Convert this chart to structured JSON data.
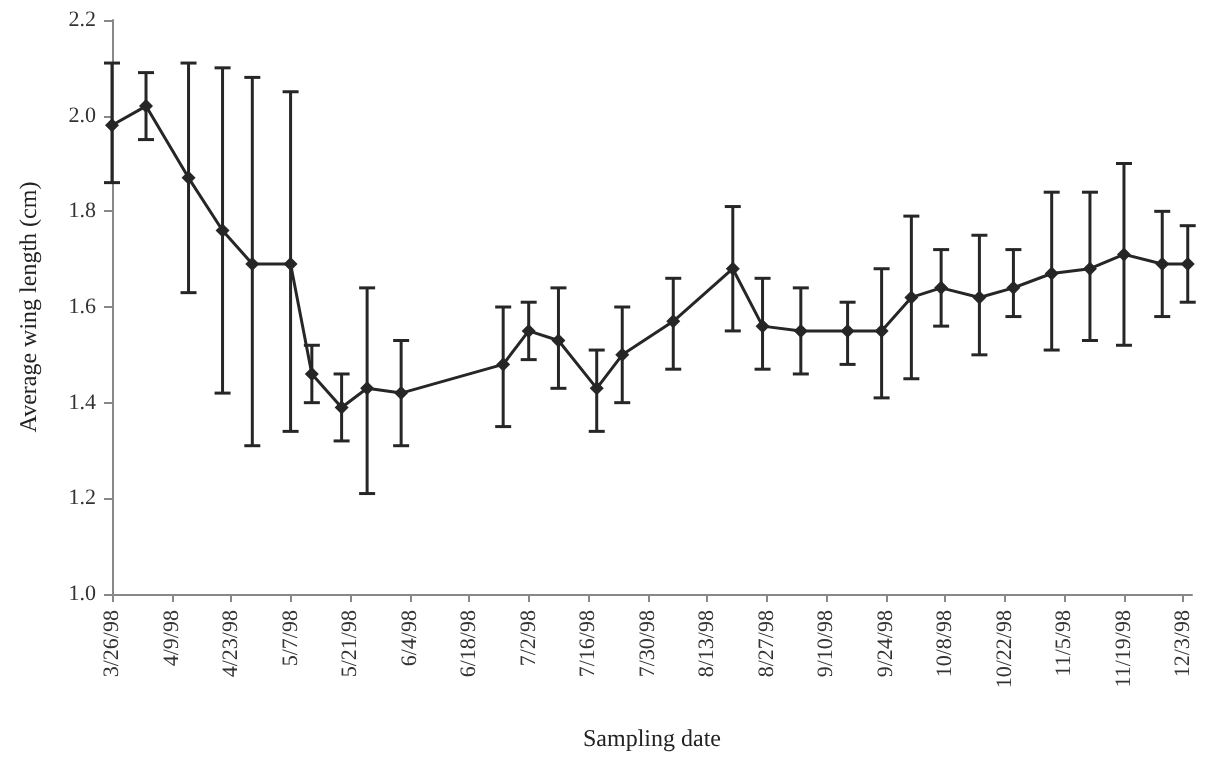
{
  "chart_data": {
    "type": "line",
    "xlabel": "Sampling date",
    "ylabel": "Average wing length (cm)",
    "x": [
      "1998-03-26",
      "1998-04-03",
      "1998-04-13",
      "1998-04-21",
      "1998-04-28",
      "1998-05-07",
      "1998-05-12",
      "1998-05-19",
      "1998-05-25",
      "1998-06-02",
      "1998-06-26",
      "1998-07-02",
      "1998-07-09",
      "1998-07-18",
      "1998-07-24",
      "1998-08-05",
      "1998-08-19",
      "1998-08-26",
      "1998-09-04",
      "1998-09-15",
      "1998-09-23",
      "1998-09-30",
      "1998-10-07",
      "1998-10-16",
      "1998-10-24",
      "1998-11-02",
      "1998-11-11",
      "1998-11-19",
      "1998-11-28",
      "1998-12-04"
    ],
    "series": [
      {
        "color": "#262626",
        "values": [
          1.98,
          2.02,
          1.87,
          1.76,
          1.69,
          1.69,
          1.46,
          1.39,
          1.43,
          1.42,
          1.48,
          1.55,
          1.53,
          1.43,
          1.5,
          1.57,
          1.68,
          1.56,
          1.55,
          1.55,
          1.55,
          1.62,
          1.64,
          1.62,
          1.64,
          1.67,
          1.68,
          1.71,
          1.69,
          1.69
        ],
        "errors": [
          [
            1.86,
            2.11
          ],
          [
            1.95,
            2.09
          ],
          [
            1.63,
            2.11
          ],
          [
            1.42,
            2.1
          ],
          [
            1.31,
            2.08
          ],
          [
            1.34,
            2.05
          ],
          [
            1.4,
            1.52
          ],
          [
            1.32,
            1.46
          ],
          [
            1.21,
            1.64
          ],
          [
            1.31,
            1.53
          ],
          [
            1.35,
            1.6
          ],
          [
            1.49,
            1.61
          ],
          [
            1.43,
            1.64
          ],
          [
            1.34,
            1.51
          ],
          [
            1.4,
            1.6
          ],
          [
            1.47,
            1.66
          ],
          [
            1.55,
            1.81
          ],
          [
            1.47,
            1.66
          ],
          [
            1.46,
            1.64
          ],
          [
            1.48,
            1.61
          ],
          [
            1.41,
            1.68
          ],
          [
            1.45,
            1.79
          ],
          [
            1.56,
            1.72
          ],
          [
            1.5,
            1.75
          ],
          [
            1.58,
            1.72
          ],
          [
            1.51,
            1.84
          ],
          [
            1.53,
            1.84
          ],
          [
            1.52,
            1.9
          ],
          [
            1.58,
            1.8
          ],
          [
            1.61,
            1.77
          ]
        ]
      }
    ],
    "xlim": [
      "1998-03-26",
      "1998-12-05"
    ],
    "xticks": [
      {
        "value": "1998-03-26",
        "label": "3/26/98"
      },
      {
        "value": "1998-04-09",
        "label": "4/9/98"
      },
      {
        "value": "1998-04-23",
        "label": "4/23/98"
      },
      {
        "value": "1998-05-07",
        "label": "5/7/98"
      },
      {
        "value": "1998-05-21",
        "label": "5/21/98"
      },
      {
        "value": "1998-06-04",
        "label": "6/4/98"
      },
      {
        "value": "1998-06-18",
        "label": "6/18/98"
      },
      {
        "value": "1998-07-02",
        "label": "7/2/98"
      },
      {
        "value": "1998-07-16",
        "label": "7/16/98"
      },
      {
        "value": "1998-07-30",
        "label": "7/30/98"
      },
      {
        "value": "1998-08-13",
        "label": "8/13/98"
      },
      {
        "value": "1998-08-27",
        "label": "8/27/98"
      },
      {
        "value": "1998-09-10",
        "label": "9/10/98"
      },
      {
        "value": "1998-09-24",
        "label": "9/24/98"
      },
      {
        "value": "1998-10-08",
        "label": "10/8/98"
      },
      {
        "value": "1998-10-22",
        "label": "10/22/98"
      },
      {
        "value": "1998-11-05",
        "label": "11/5/98"
      },
      {
        "value": "1998-11-19",
        "label": "11/19/98"
      },
      {
        "value": "1998-12-03",
        "label": "12/3/98"
      }
    ],
    "ylim": [
      1.0,
      2.2
    ],
    "yticks": [
      {
        "value": 1.0,
        "label": "1.0"
      },
      1.2,
      1.4,
      1.6,
      1.8,
      {
        "value": 2.0,
        "label": "2.0"
      },
      2.2
    ],
    "grid": false,
    "marker": "diamond",
    "line_style": "solid"
  }
}
